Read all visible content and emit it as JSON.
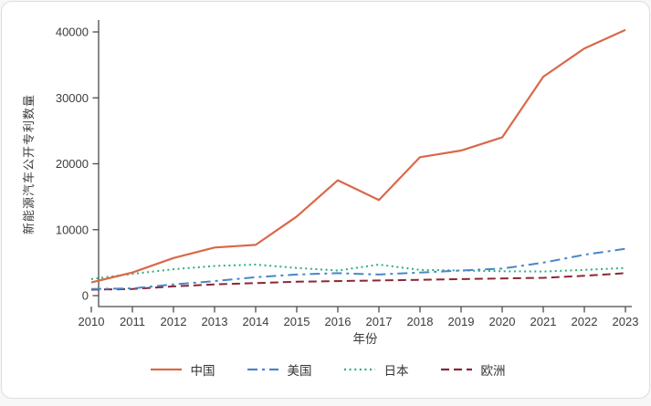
{
  "chart_data": {
    "type": "line",
    "title": "",
    "xlabel": "年份",
    "ylabel": "新能源汽车公开专利数量",
    "x": [
      2010,
      2011,
      2012,
      2013,
      2014,
      2015,
      2016,
      2017,
      2018,
      2019,
      2020,
      2021,
      2022,
      2023
    ],
    "ylim": [
      0,
      40000
    ],
    "yticks": [
      0,
      10000,
      20000,
      30000,
      40000
    ],
    "grid": false,
    "legend_position": "bottom",
    "axis_color": "#4a4a4a",
    "tick_label_color": "#3c3c3c",
    "series": [
      {
        "name": "中国",
        "color": "#d9694a",
        "style": "solid",
        "values": [
          2000,
          3500,
          5700,
          7300,
          7700,
          12000,
          17500,
          14500,
          21000,
          22000,
          24000,
          33200,
          37500,
          40300
        ]
      },
      {
        "name": "美国",
        "color": "#4a86c8",
        "style": "dashdot",
        "values": [
          1000,
          1100,
          1700,
          2200,
          2800,
          3200,
          3400,
          3200,
          3500,
          3800,
          4100,
          5000,
          6200,
          7100
        ]
      },
      {
        "name": "日本",
        "color": "#2fae81",
        "style": "dotted",
        "values": [
          2500,
          3300,
          4000,
          4500,
          4700,
          4200,
          3800,
          4700,
          3900,
          3800,
          3700,
          3650,
          3900,
          4200
        ]
      },
      {
        "name": "欧洲",
        "color": "#8b2636",
        "style": "dashed",
        "values": [
          900,
          1000,
          1400,
          1700,
          1900,
          2100,
          2200,
          2300,
          2400,
          2500,
          2600,
          2700,
          3000,
          3400
        ]
      }
    ]
  }
}
